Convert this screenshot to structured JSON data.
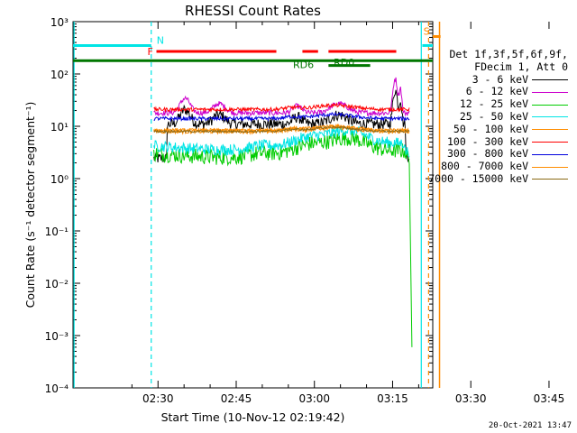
{
  "chart_data": {
    "type": "line",
    "title": "RHESSI Count Rates",
    "xlabel": "Start Time (10-Nov-12 02:19:42)",
    "ylabel": "Count Rate (s⁻¹ detector segment⁻¹)",
    "yscale": "log",
    "ylim": [
      0.0001,
      1000
    ],
    "xlim_minutes": [
      -6,
      63
    ],
    "x_ticks": [
      "02:30",
      "02:45",
      "03:00",
      "03:15",
      "03:30",
      "03:45"
    ],
    "y_ticks": [
      "10⁻⁴",
      "10⁻³",
      "10⁻²",
      "10⁻¹",
      "10⁰",
      "10¹",
      "10²",
      "10³"
    ],
    "grid": false,
    "legend_position": "right",
    "legend_header": [
      "Det 1f,3f,5f,6f,9f,",
      "FDecim 1, Att 0"
    ],
    "series": [
      {
        "name": "3 - 6 keV",
        "color": "#000000",
        "base": 11,
        "noise": 0.25
      },
      {
        "name": "6 - 12 keV",
        "color": "#cc00cc",
        "base": 18,
        "noise": 0.12
      },
      {
        "name": "12 - 25 keV",
        "color": "#00cc00",
        "base": 3.0,
        "noise": 0.35
      },
      {
        "name": "25 - 50 keV",
        "color": "#00e5e5",
        "base": 4.2,
        "noise": 0.25
      },
      {
        "name": "50 - 100 keV",
        "color": "#ff8c00",
        "base": 8.0,
        "noise": 0.1
      },
      {
        "name": "100 - 300 keV",
        "color": "#ff0000",
        "base": 21,
        "noise": 0.08
      },
      {
        "name": "300 - 800 keV",
        "color": "#0000dd",
        "base": 14,
        "noise": 0.08
      },
      {
        "name": "800 - 7000 keV",
        "color": "#ff8c00",
        "base": 8.5,
        "noise": 0.06
      },
      {
        "name": "7000 - 15000 keV",
        "color": "#8b6914",
        "base": 8.0,
        "noise": 0.05
      }
    ],
    "annotations": {
      "flags": [
        {
          "label": "N",
          "color": "#00e5e5"
        },
        {
          "label": "F",
          "color": "#ff0000"
        },
        {
          "label": "S",
          "color": "#ff8c00"
        },
        {
          "label": "RD0",
          "color": "#007700"
        },
        {
          "label": "RD6",
          "color": "#007700"
        }
      ]
    }
  },
  "timestamp": "20-Oct-2021 13:47"
}
